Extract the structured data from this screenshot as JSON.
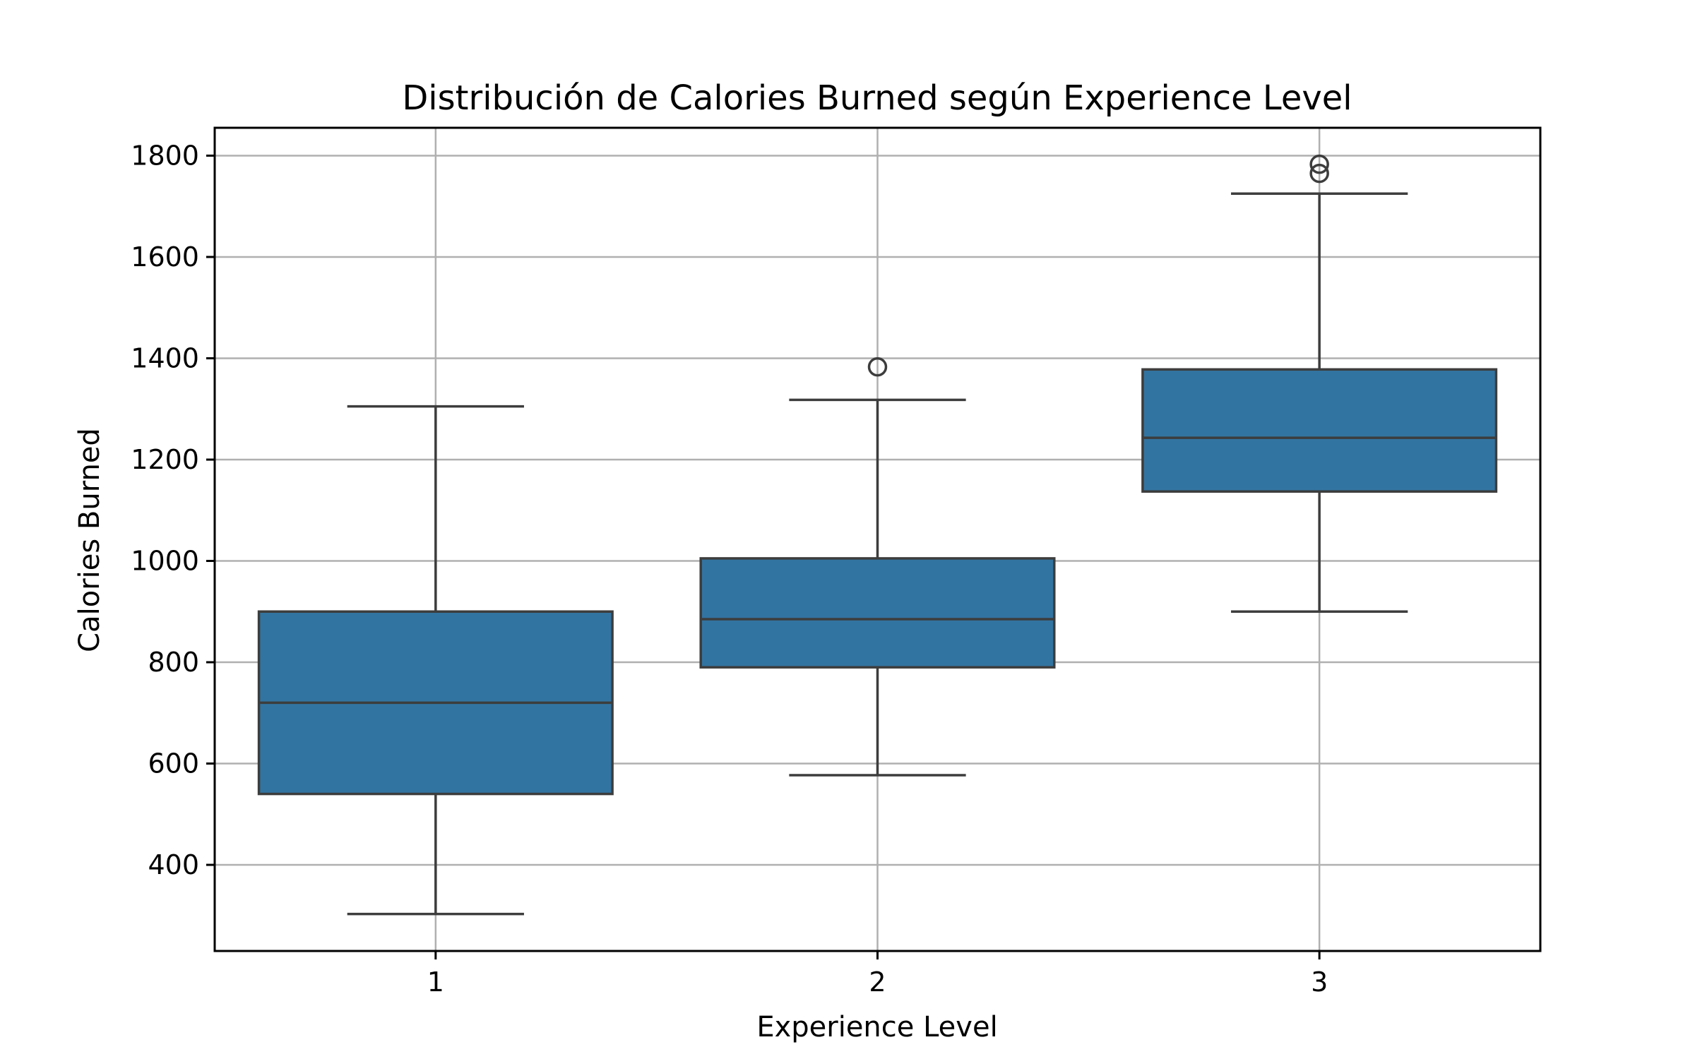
{
  "chart_data": {
    "type": "box",
    "title": "Distribución de Calories Burned según Experience Level",
    "xlabel": "Experience Level",
    "ylabel": "Calories Burned",
    "categories": [
      "1",
      "2",
      "3"
    ],
    "ylim": [
      230,
      1855
    ],
    "yticks": [
      400,
      600,
      800,
      1000,
      1200,
      1400,
      1600,
      1800
    ],
    "grid": true,
    "color": "#3274a1",
    "edge_color": "#3d3d3d",
    "boxes": [
      {
        "category": "1",
        "whisker_low": 303,
        "q1": 540,
        "median": 720,
        "q3": 900,
        "whisker_high": 1305,
        "outliers": []
      },
      {
        "category": "2",
        "whisker_low": 577,
        "q1": 790,
        "median": 885,
        "q3": 1005,
        "whisker_high": 1318,
        "outliers": [
          1383
        ]
      },
      {
        "category": "3",
        "whisker_low": 900,
        "q1": 1137,
        "median": 1243,
        "q3": 1378,
        "whisker_high": 1725,
        "outliers": [
          1765,
          1783
        ]
      }
    ]
  }
}
